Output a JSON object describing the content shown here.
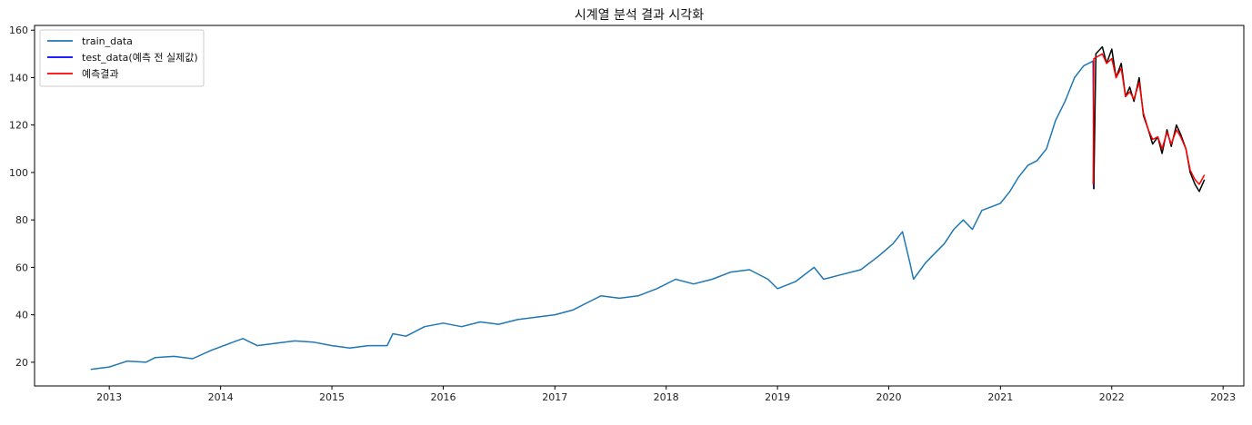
{
  "chart_data": {
    "type": "line",
    "title": "시계열 분석 결과 시각화",
    "xlabel": "",
    "ylabel": "",
    "xlim": [
      "2012-05-01",
      "2023-03-10"
    ],
    "ylim": [
      10,
      162
    ],
    "x_ticks": [
      "2013",
      "2014",
      "2015",
      "2016",
      "2017",
      "2018",
      "2019",
      "2020",
      "2021",
      "2022",
      "2023"
    ],
    "y_ticks": [
      20,
      40,
      60,
      80,
      100,
      120,
      140,
      160
    ],
    "grid": false,
    "legend_position": "top-left",
    "series": [
      {
        "name": "train_data",
        "color": "#1f77b4",
        "points": [
          [
            "2012-11-01",
            17
          ],
          [
            "2013-01-01",
            18
          ],
          [
            "2013-03-01",
            20.5
          ],
          [
            "2013-05-01",
            20
          ],
          [
            "2013-06-01",
            22
          ],
          [
            "2013-08-01",
            22.5
          ],
          [
            "2013-10-01",
            21.5
          ],
          [
            "2013-12-01",
            25
          ],
          [
            "2014-02-01",
            28
          ],
          [
            "2014-03-15",
            30
          ],
          [
            "2014-05-01",
            27
          ],
          [
            "2014-07-01",
            28
          ],
          [
            "2014-09-01",
            29
          ],
          [
            "2014-11-01",
            28.5
          ],
          [
            "2015-01-01",
            27
          ],
          [
            "2015-03-01",
            26
          ],
          [
            "2015-05-01",
            27
          ],
          [
            "2015-07-01",
            27
          ],
          [
            "2015-07-20",
            32
          ],
          [
            "2015-09-01",
            31
          ],
          [
            "2015-11-01",
            35
          ],
          [
            "2016-01-01",
            36.5
          ],
          [
            "2016-03-01",
            35
          ],
          [
            "2016-05-01",
            37
          ],
          [
            "2016-07-01",
            36
          ],
          [
            "2016-09-01",
            38
          ],
          [
            "2016-11-01",
            39
          ],
          [
            "2017-01-01",
            40
          ],
          [
            "2017-03-01",
            42
          ],
          [
            "2017-05-01",
            46
          ],
          [
            "2017-06-01",
            48
          ],
          [
            "2017-08-01",
            47
          ],
          [
            "2017-10-01",
            48
          ],
          [
            "2017-12-01",
            51
          ],
          [
            "2018-02-01",
            55
          ],
          [
            "2018-04-01",
            53
          ],
          [
            "2018-06-01",
            55
          ],
          [
            "2018-08-01",
            58
          ],
          [
            "2018-10-01",
            59
          ],
          [
            "2018-12-01",
            55
          ],
          [
            "2019-01-01",
            51
          ],
          [
            "2019-03-01",
            54
          ],
          [
            "2019-05-01",
            60
          ],
          [
            "2019-06-01",
            55
          ],
          [
            "2019-08-01",
            57
          ],
          [
            "2019-10-01",
            59
          ],
          [
            "2019-12-01",
            65
          ],
          [
            "2020-01-15",
            70
          ],
          [
            "2020-02-15",
            75
          ],
          [
            "2020-03-10",
            62
          ],
          [
            "2020-03-22",
            55
          ],
          [
            "2020-05-01",
            62
          ],
          [
            "2020-07-01",
            70
          ],
          [
            "2020-08-01",
            76
          ],
          [
            "2020-09-01",
            80
          ],
          [
            "2020-10-01",
            76
          ],
          [
            "2020-11-01",
            84
          ],
          [
            "2021-01-01",
            87
          ],
          [
            "2021-02-01",
            92
          ],
          [
            "2021-03-01",
            98
          ],
          [
            "2021-04-01",
            103
          ],
          [
            "2021-05-01",
            105
          ],
          [
            "2021-06-01",
            110
          ],
          [
            "2021-07-01",
            122
          ],
          [
            "2021-08-01",
            130
          ],
          [
            "2021-09-01",
            140
          ],
          [
            "2021-10-01",
            145
          ],
          [
            "2021-11-01",
            147
          ]
        ]
      },
      {
        "name": "test_data(예측 전 실제값)",
        "color": "#0000ff",
        "points": [
          [
            "2021-11-01",
            147
          ],
          [
            "2021-11-03",
            93
          ]
        ]
      },
      {
        "name": "",
        "color": "#000000",
        "points": [
          [
            "2021-11-03",
            93
          ],
          [
            "2021-11-10",
            150
          ],
          [
            "2021-12-01",
            153
          ],
          [
            "2021-12-15",
            146
          ],
          [
            "2022-01-01",
            152
          ],
          [
            "2022-01-15",
            140
          ],
          [
            "2022-02-01",
            146
          ],
          [
            "2022-02-15",
            132
          ],
          [
            "2022-03-01",
            136
          ],
          [
            "2022-03-15",
            130
          ],
          [
            "2022-04-01",
            140
          ],
          [
            "2022-04-15",
            124
          ],
          [
            "2022-05-01",
            118
          ],
          [
            "2022-05-15",
            112
          ],
          [
            "2022-06-01",
            115
          ],
          [
            "2022-06-15",
            108
          ],
          [
            "2022-07-01",
            118
          ],
          [
            "2022-07-15",
            111
          ],
          [
            "2022-08-01",
            120
          ],
          [
            "2022-08-15",
            116
          ],
          [
            "2022-09-01",
            110
          ],
          [
            "2022-09-15",
            100
          ],
          [
            "2022-10-01",
            95
          ],
          [
            "2022-10-15",
            92
          ],
          [
            "2022-11-01",
            97
          ]
        ]
      },
      {
        "name": "예측결과",
        "color": "#ff0000",
        "points": [
          [
            "2021-11-01",
            95
          ],
          [
            "2021-11-03",
            148
          ],
          [
            "2021-12-01",
            150
          ],
          [
            "2021-12-15",
            146
          ],
          [
            "2022-01-01",
            148
          ],
          [
            "2022-01-15",
            140
          ],
          [
            "2022-02-01",
            144
          ],
          [
            "2022-02-15",
            132
          ],
          [
            "2022-03-01",
            134
          ],
          [
            "2022-03-15",
            131
          ],
          [
            "2022-04-01",
            138
          ],
          [
            "2022-04-15",
            125
          ],
          [
            "2022-05-01",
            118
          ],
          [
            "2022-05-15",
            114
          ],
          [
            "2022-06-01",
            115
          ],
          [
            "2022-06-15",
            110
          ],
          [
            "2022-07-01",
            117
          ],
          [
            "2022-07-15",
            112
          ],
          [
            "2022-08-01",
            118
          ],
          [
            "2022-08-15",
            115
          ],
          [
            "2022-09-01",
            110
          ],
          [
            "2022-09-15",
            101
          ],
          [
            "2022-10-01",
            97
          ],
          [
            "2022-10-15",
            95
          ],
          [
            "2022-11-01",
            99
          ]
        ]
      }
    ]
  }
}
